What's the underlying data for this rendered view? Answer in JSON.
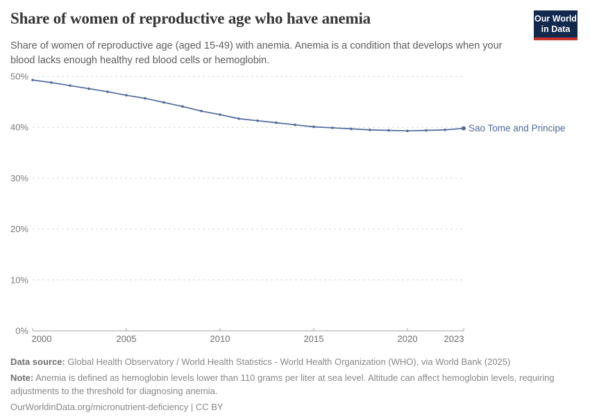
{
  "header": {
    "title": "Share of women of reproductive age who have anemia",
    "subtitle_lines": [
      "Share of women of reproductive age (aged 15-49) with anemia. Anemia is a condition that develops when your",
      "blood lacks enough healthy red blood cells or hemoglobin."
    ],
    "logo": {
      "line1": "Our World",
      "line2": "in Data"
    }
  },
  "colors": {
    "line": "#4C6A9C",
    "series_label": "#4C6A9C",
    "logo_bg": "#12294d",
    "logo_stripe": "#c5332b",
    "gridline": "#d9d9d9",
    "axis": "#a1a1a1",
    "x_tick_label": "#6b6b6b",
    "y_tick_label": "#7d7d7d"
  },
  "chart_data": {
    "type": "line",
    "title": "Share of women of reproductive age who have anemia",
    "xlabel": "",
    "ylabel": "",
    "xlim": [
      2000,
      2023
    ],
    "ylim": [
      0,
      50
    ],
    "grid": "horizontal-dashed",
    "legend_position": "end-of-line-label",
    "x_ticks": [
      2000,
      2005,
      2010,
      2015,
      2020,
      2023
    ],
    "y_ticks": [
      0,
      10,
      20,
      30,
      40,
      50
    ],
    "y_tick_suffix": "%",
    "series": [
      {
        "name": "Sao Tome and Principe",
        "color": "#4C6A9C",
        "x": [
          2000,
          2001,
          2002,
          2003,
          2004,
          2005,
          2006,
          2007,
          2008,
          2009,
          2010,
          2011,
          2012,
          2013,
          2014,
          2015,
          2016,
          2017,
          2018,
          2019,
          2020,
          2021,
          2022,
          2023
        ],
        "values": [
          49.3,
          48.8,
          48.2,
          47.6,
          47.0,
          46.3,
          45.7,
          44.9,
          44.1,
          43.2,
          42.5,
          41.7,
          41.3,
          40.9,
          40.5,
          40.1,
          39.9,
          39.7,
          39.5,
          39.4,
          39.3,
          39.4,
          39.5,
          39.8
        ]
      }
    ]
  },
  "footer": {
    "data_source_label": "Data source:",
    "data_source_text": "Global Health Observatory / World Health Statistics - World Health Organization (WHO), via World Bank (2025)",
    "note_label": "Note:",
    "note_lines": [
      "Anemia is defined as hemoglobin levels lower than 110 grams per liter at sea level. Altitude can affect hemoglobin levels, requiring",
      "adjustments to the threshold for diagnosing anemia."
    ],
    "link_text": "OurWorldinData.org/micronutrient-deficiency | CC BY"
  }
}
